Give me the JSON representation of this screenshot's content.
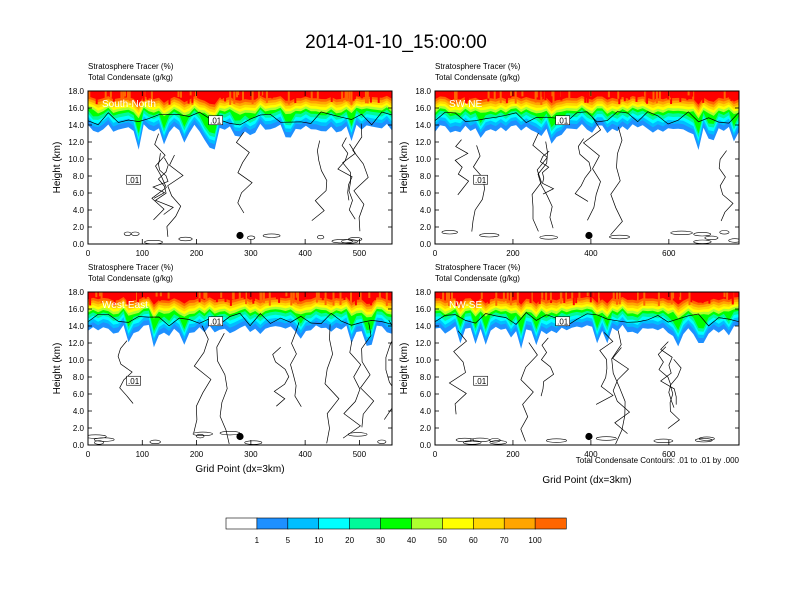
{
  "title": "2014-01-10_15:00:00",
  "field_label": "Stratosphere Tracer",
  "field_unit": "(%)",
  "contour_label": "Total Condensate",
  "contour_unit": "(g/kg)",
  "ylabel": "Height (km)",
  "xlabel": "Grid Point (dx=3km)",
  "contour_note": "Total Condensate Contours: .01 to .01 by .000",
  "contour_tag": ".01",
  "colorbar": {
    "levels": [
      "1",
      "5",
      "10",
      "20",
      "30",
      "40",
      "50",
      "60",
      "70",
      "100"
    ],
    "colors": [
      "#ffffff",
      "#1e90ff",
      "#00bfff",
      "#00ffff",
      "#00fa9a",
      "#00ff00",
      "#adff2f",
      "#ffff00",
      "#ffd700",
      "#ffa500",
      "#ff6600",
      "#ff0000"
    ]
  },
  "chart_data": [
    {
      "type": "heatmap",
      "panel": "South-North",
      "xlim": [
        0,
        560
      ],
      "ylim": [
        0,
        18
      ],
      "xticks": [
        "0",
        "100",
        "200",
        "300",
        "400",
        "500"
      ],
      "yticks": [
        "0.0",
        "2.0",
        "4.0",
        "6.0",
        "8.0",
        "10.0",
        "12.0",
        "14.0",
        "16.0",
        "18.0"
      ],
      "marker_x": 280,
      "marker_y": 1.0
    },
    {
      "type": "heatmap",
      "panel": "SW-NE",
      "xlim": [
        0,
        780
      ],
      "ylim": [
        0,
        18
      ],
      "xticks": [
        "0",
        "200",
        "400",
        "600"
      ],
      "yticks": [
        "0.0",
        "2.0",
        "4.0",
        "6.0",
        "8.0",
        "10.0",
        "12.0",
        "14.0",
        "16.0",
        "18.0"
      ],
      "marker_x": 395,
      "marker_y": 1.0
    },
    {
      "type": "heatmap",
      "panel": "West-East",
      "xlim": [
        0,
        560
      ],
      "ylim": [
        0,
        18
      ],
      "xticks": [
        "0",
        "100",
        "200",
        "300",
        "400",
        "500"
      ],
      "yticks": [
        "0.0",
        "2.0",
        "4.0",
        "6.0",
        "8.0",
        "10.0",
        "12.0",
        "14.0",
        "16.0",
        "18.0"
      ],
      "marker_x": 280,
      "marker_y": 1.0
    },
    {
      "type": "heatmap",
      "panel": "NW-SE",
      "xlim": [
        0,
        780
      ],
      "ylim": [
        0,
        18
      ],
      "xticks": [
        "0",
        "200",
        "400",
        "600"
      ],
      "yticks": [
        "0.0",
        "2.0",
        "4.0",
        "6.0",
        "8.0",
        "10.0",
        "12.0",
        "14.0",
        "16.0",
        "18.0"
      ],
      "marker_x": 395,
      "marker_y": 1.0
    }
  ]
}
